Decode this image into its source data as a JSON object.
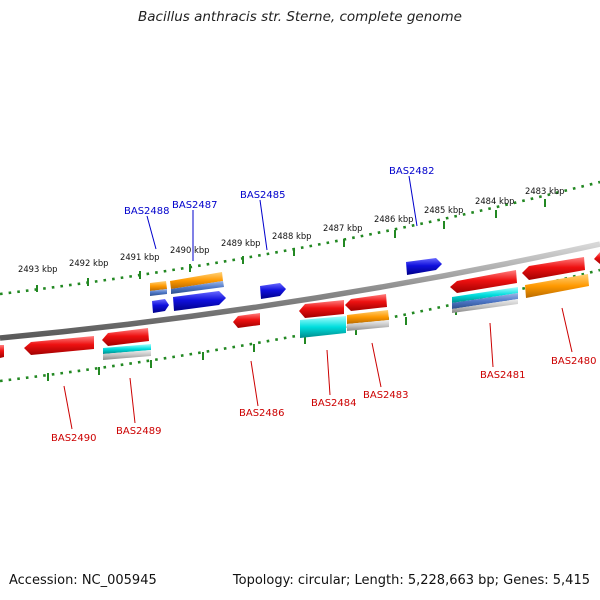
{
  "title": "Bacillus anthracis str. Sterne, complete genome",
  "footer": {
    "accession": "Accession: NC_005945",
    "summary": "Topology: circular; Length: 5,228,663 bp; Genes: 5,415"
  },
  "scale_labels": [
    "2493 kbp",
    "2492 kbp",
    "2491 kbp",
    "2490 kbp",
    "2489 kbp",
    "2488 kbp",
    "2487 kbp",
    "2486 kbp",
    "2485 kbp",
    "2484 kbp",
    "2483 kbp"
  ],
  "forward_gene_labels": [
    "BAS2488",
    "BAS2487",
    "BAS2485",
    "BAS2482"
  ],
  "reverse_gene_labels": [
    "BAS2490",
    "BAS2489",
    "BAS2486",
    "BAS2484",
    "BAS2483",
    "BAS2481",
    "BAS2480"
  ],
  "colors": {
    "forward_label": "#0000cc",
    "reverse_label": "#cc0000",
    "gene_red": "#ee1111",
    "gene_blue": "#1111dd",
    "gene_orange": "#ff9900",
    "gene_cyan": "#00dddd",
    "backbone": "#888888",
    "tick": "#228822"
  }
}
